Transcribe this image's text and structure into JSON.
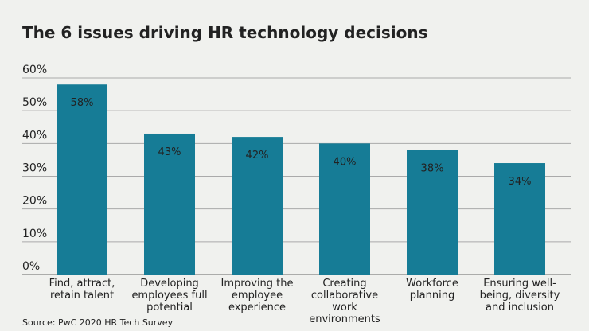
{
  "chart_data": {
    "type": "bar",
    "title": "The 6 issues driving HR technology decisions",
    "categories": [
      "Find, attract, retain talent",
      "Developing employees full potential",
      "Improving the employee experience",
      "Creating collaborative work environments",
      "Workforce planning",
      "Ensuring well-being, diversity and inclusion"
    ],
    "values": [
      58,
      43,
      42,
      40,
      38,
      34
    ],
    "value_labels": [
      "58%",
      "43%",
      "42%",
      "40%",
      "38%",
      "34%"
    ],
    "color": "#167c96",
    "ylim": [
      0,
      60
    ],
    "yticks": [
      {
        "value": 0,
        "label": "0%"
      },
      {
        "value": 10,
        "label": "10%"
      },
      {
        "value": 20,
        "label": "20%"
      },
      {
        "value": 30,
        "label": "30%"
      },
      {
        "value": 40,
        "label": "40%"
      },
      {
        "value": 50,
        "label": "50%"
      },
      {
        "value": 60,
        "label": "60%"
      }
    ],
    "grid": true,
    "source": "Source: PwC 2020 HR Tech Survey"
  }
}
